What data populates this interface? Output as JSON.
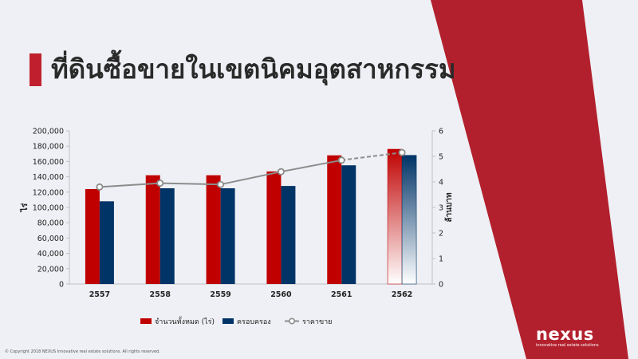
{
  "title": "ที่ดินซื้อขายในเขตนิคมอุตสาหกรรม",
  "copyright": "© Copyright 2018 NEXUS Innovative real estate solutions. All rights reserved.",
  "logo": {
    "name": "nexus",
    "tagline": "innovative real estate solutions"
  },
  "colors": {
    "accent": "#c0202e",
    "red": "#c00000",
    "navy": "#003366",
    "line": "#8c8c8c",
    "background": "#eef0f5"
  },
  "chart_data": {
    "type": "bar",
    "categories": [
      "2557",
      "2558",
      "2559",
      "2560",
      "2561",
      "2562"
    ],
    "series": [
      {
        "name": "จำนวนทั้งหมด (ไร่)",
        "type": "bar",
        "axis": "left",
        "values": [
          124000,
          142000,
          142000,
          147000,
          168000,
          176000
        ]
      },
      {
        "name": "ครอบครอง",
        "type": "bar",
        "axis": "left",
        "values": [
          108000,
          125000,
          125000,
          128000,
          155000,
          168000
        ]
      },
      {
        "name": "ราคาขาย",
        "type": "line",
        "axis": "right",
        "values": [
          3.8,
          3.95,
          3.9,
          4.4,
          4.85,
          5.15
        ]
      }
    ],
    "projected_category": "2562",
    "ylabel": "ไร่",
    "y2label": "ล้านบาท",
    "ylim": [
      0,
      200000
    ],
    "y2lim": [
      0,
      6
    ],
    "yticks": [
      "0",
      "20,000",
      "40,000",
      "60,000",
      "80,000",
      "100,000",
      "120,000",
      "140,000",
      "160,000",
      "180,000",
      "200,000"
    ],
    "y2ticks": [
      "0",
      "1",
      "2",
      "3",
      "4",
      "5",
      "6"
    ],
    "legend_position": "bottom",
    "grid": false
  }
}
